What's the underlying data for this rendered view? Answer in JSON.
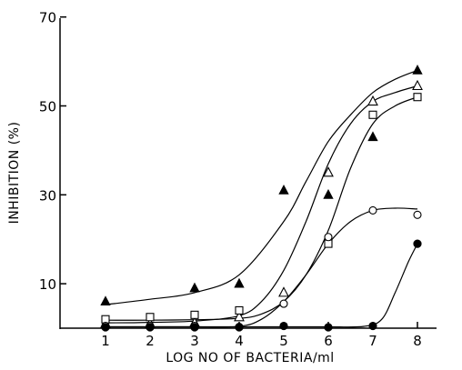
{
  "chart_data": {
    "type": "scatter",
    "xlabel": "LOG NO OF BACTERIA/ml",
    "ylabel": "INHIBITION (%)",
    "xlim": [
      0.5,
      8.6
    ],
    "ylim": [
      0,
      70
    ],
    "x_ticks": [
      1,
      2,
      3,
      4,
      5,
      6,
      7,
      8
    ],
    "y_ticks": [
      10,
      30,
      50,
      70
    ],
    "grid": false,
    "legend": "none",
    "series": [
      {
        "marker": "filled-triangle",
        "x": [
          1,
          3,
          4,
          5,
          6,
          7,
          8
        ],
        "y": [
          6,
          9,
          10,
          31,
          30,
          43,
          58
        ],
        "curve": [
          [
            1,
            5.3
          ],
          [
            2,
            6.5
          ],
          [
            3,
            8
          ],
          [
            4,
            12
          ],
          [
            5,
            24
          ],
          [
            5.5,
            33
          ],
          [
            6,
            42
          ],
          [
            6.5,
            48
          ],
          [
            7,
            53
          ],
          [
            7.5,
            56
          ],
          [
            8,
            58
          ]
        ]
      },
      {
        "marker": "open-triangle",
        "x": [
          1,
          2,
          3,
          4,
          5,
          6,
          7,
          8
        ],
        "y": [
          1,
          1,
          1.2,
          2.5,
          8,
          35,
          51,
          54.5
        ],
        "curve": [
          [
            1,
            1.2
          ],
          [
            2,
            1.3
          ],
          [
            3,
            1.6
          ],
          [
            4,
            2.8
          ],
          [
            4.5,
            6
          ],
          [
            5,
            13
          ],
          [
            5.5,
            24
          ],
          [
            6,
            37
          ],
          [
            6.5,
            46
          ],
          [
            7,
            51
          ],
          [
            7.5,
            53
          ],
          [
            8,
            54.5
          ]
        ]
      },
      {
        "marker": "open-square",
        "x": [
          1,
          2,
          3,
          4,
          6,
          7,
          8
        ],
        "y": [
          2,
          2.5,
          3,
          4,
          19,
          48,
          52
        ],
        "curve": [
          [
            1,
            1.8
          ],
          [
            2,
            1.8
          ],
          [
            3,
            1.9
          ],
          [
            4,
            2.2
          ],
          [
            4.5,
            3.2
          ],
          [
            5,
            6
          ],
          [
            5.5,
            12
          ],
          [
            6,
            22
          ],
          [
            6.5,
            36
          ],
          [
            7,
            46
          ],
          [
            7.5,
            50
          ],
          [
            8,
            52
          ]
        ]
      },
      {
        "marker": "open-circle",
        "x": [
          1,
          2,
          3,
          4,
          5,
          6,
          7,
          8
        ],
        "y": [
          0.5,
          0.5,
          0.5,
          0.3,
          5.5,
          20.5,
          26.5,
          25.5
        ],
        "curve": [
          [
            1,
            0.3
          ],
          [
            2,
            0.3
          ],
          [
            3,
            0.3
          ],
          [
            4,
            0.4
          ],
          [
            4.5,
            2
          ],
          [
            5,
            6
          ],
          [
            5.5,
            12
          ],
          [
            6,
            19
          ],
          [
            6.5,
            24
          ],
          [
            7,
            26.5
          ],
          [
            7.5,
            27
          ],
          [
            8,
            26.8
          ]
        ]
      },
      {
        "marker": "filled-circle",
        "x": [
          1,
          2,
          3,
          4,
          5,
          6,
          7,
          8
        ],
        "y": [
          0.2,
          0.2,
          0.2,
          0.2,
          0.5,
          0.2,
          0.5,
          19
        ],
        "curve": [
          [
            1,
            0.3
          ],
          [
            2,
            0.3
          ],
          [
            3,
            0.3
          ],
          [
            4,
            0.3
          ],
          [
            5,
            0.3
          ],
          [
            6,
            0.3
          ],
          [
            6.8,
            0.4
          ],
          [
            7.2,
            2
          ],
          [
            7.5,
            8
          ],
          [
            7.8,
            15
          ],
          [
            8,
            19
          ]
        ]
      }
    ]
  }
}
